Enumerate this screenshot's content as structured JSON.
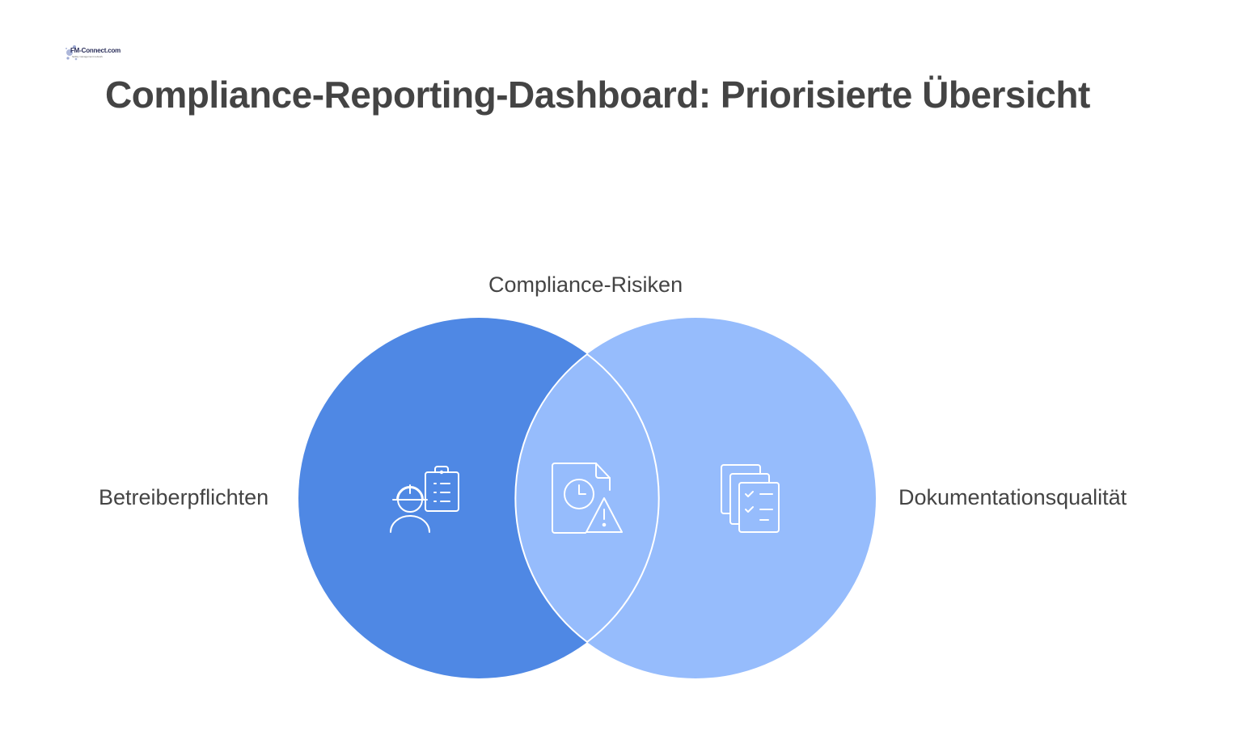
{
  "logo": {
    "name": "FM-Connect.com",
    "tagline": "facility management network"
  },
  "title": "Compliance-Reporting-Dashboard: Priorisierte Übersicht",
  "venn": {
    "left": {
      "label": "Betreiberpflichten",
      "icon": "worker-clipboard-icon",
      "color": "#4f88e4"
    },
    "right": {
      "label": "Dokumentationsqualität",
      "icon": "document-checklist-icon",
      "color": "#96bcfc"
    },
    "intersection": {
      "label": "Compliance-Risiken",
      "icon": "document-warning-icon",
      "color": "#96bcfc"
    }
  }
}
